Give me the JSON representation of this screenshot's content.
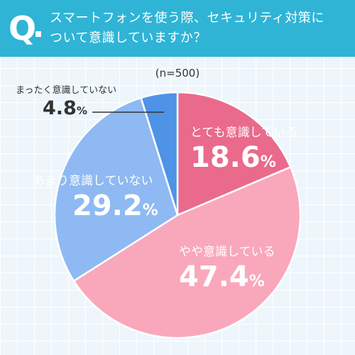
{
  "header": {
    "mark": "Q",
    "question_line1": "スマートフォンを使う際、セキュリティ対策に",
    "question_line2": "ついて意識していますか？",
    "bg_color": "#2fb4d6"
  },
  "sample_note": "(n=500)",
  "chart_data": {
    "type": "pie",
    "slices": [
      {
        "label": "とても意識している",
        "value": 18.6,
        "value_label": "18.6",
        "unit": "%",
        "color": "#ea6a8c"
      },
      {
        "label": "やや意識している",
        "value": 47.4,
        "value_label": "47.4",
        "unit": "%",
        "color": "#f9a8bc"
      },
      {
        "label": "あまり意識していない",
        "value": 29.2,
        "value_label": "29.2",
        "unit": "%",
        "color": "#8fb9f2"
      },
      {
        "label": "まったく意識していない",
        "value": 4.8,
        "value_label": "4.8",
        "unit": "%",
        "color": "#4f93e6"
      }
    ],
    "start": "12 o'clock",
    "direction": "clockwise"
  }
}
